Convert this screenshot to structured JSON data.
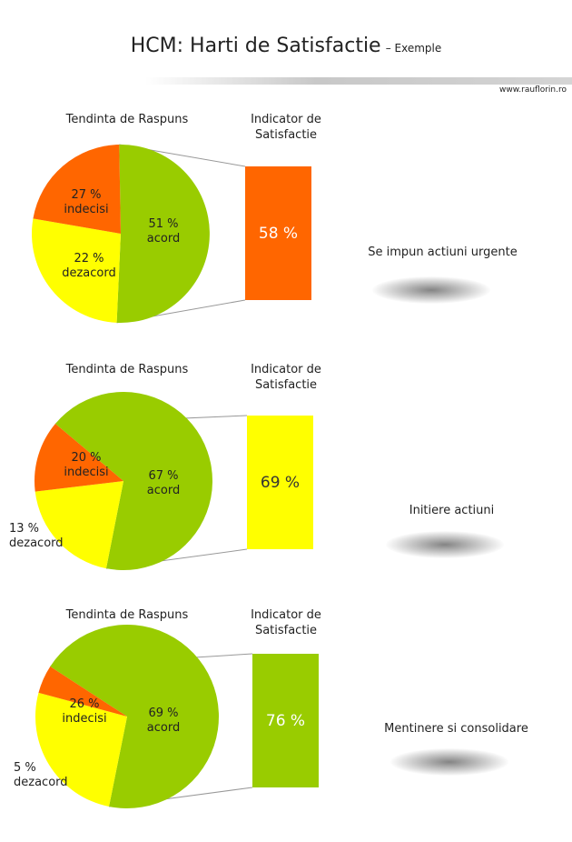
{
  "header": {
    "title": "HCM: Harti de Satisfactie",
    "subtitle": "– Exemple",
    "website": "www.rauflorin.ro"
  },
  "chart_data": [
    {
      "type": "pie",
      "left_title": "Tendinta de Raspuns",
      "right_title_line1": "Indicator de",
      "right_title_line2": "Satisfactie",
      "slices": [
        {
          "label": "acord",
          "value": 51,
          "value_text": "51 %",
          "color": "#99cc00"
        },
        {
          "label": "indecisi",
          "value": 27,
          "value_text": "27 %",
          "color": "#ffff00"
        },
        {
          "label": "dezacord",
          "value": 22,
          "value_text": "22 %",
          "color": "#ff6600"
        }
      ],
      "indicator": {
        "value": 58,
        "text": "58 %",
        "color": "#ff6600",
        "text_color": "#ffffff"
      },
      "action": "Se impun actiuni urgente"
    },
    {
      "type": "pie",
      "left_title": "Tendinta de Raspuns",
      "right_title_line1": "Indicator de",
      "right_title_line2": "Satisfactie",
      "slices": [
        {
          "label": "acord",
          "value": 67,
          "value_text": "67 %",
          "color": "#99cc00"
        },
        {
          "label": "indecisi",
          "value": 20,
          "value_text": "20 %",
          "color": "#ffff00"
        },
        {
          "label": "dezacord",
          "value": 13,
          "value_text": "13 %",
          "color": "#ff6600"
        }
      ],
      "indicator": {
        "value": 69,
        "text": "69 %",
        "color": "#ffff00",
        "text_color": "#333333"
      },
      "action": "Initiere actiuni"
    },
    {
      "type": "pie",
      "left_title": "Tendinta de Raspuns",
      "right_title_line1": "Indicator de",
      "right_title_line2": "Satisfactie",
      "slices": [
        {
          "label": "acord",
          "value": 69,
          "value_text": "69 %",
          "color": "#99cc00"
        },
        {
          "label": "indecisi",
          "value": 26,
          "value_text": "26 %",
          "color": "#ffff00"
        },
        {
          "label": "dezacord",
          "value": 5,
          "value_text": "5 %",
          "color": "#ff6600"
        }
      ],
      "indicator": {
        "value": 76,
        "text": "76 %",
        "color": "#99cc00",
        "text_color": "#ffffff"
      },
      "action": "Mentinere si consolidare"
    }
  ]
}
